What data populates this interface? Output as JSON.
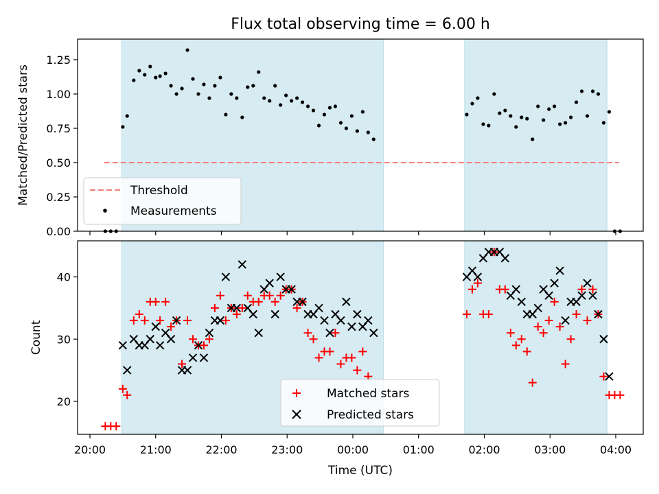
{
  "chart_data": [
    {
      "type": "scatter",
      "title": "Flux total observing time = 6.00 h",
      "xlabel": "",
      "ylabel": "Matched/Predicted stars",
      "ylim": [
        0,
        1.4
      ],
      "y_ticks": [
        "0.00",
        "0.25",
        "0.50",
        "0.75",
        "1.00",
        "1.25"
      ],
      "y_tick_values": [
        0,
        0.25,
        0.5,
        0.75,
        1.0,
        1.25
      ],
      "x_ticks": [
        "20:00",
        "21:00",
        "22:00",
        "23:00",
        "00:00",
        "01:00",
        "02:00",
        "03:00",
        "04:00"
      ],
      "shaded_intervals": [
        [
          "20:29",
          "00:28"
        ],
        [
          "01:42",
          "03:52"
        ]
      ],
      "threshold": {
        "name": "Threshold",
        "value": 0.5,
        "x_range": [
          "20:13",
          "04:03"
        ]
      },
      "legend_position": "lower-left",
      "series": [
        {
          "name": "Measurements",
          "marker": "dot",
          "color": "#000000",
          "points": [
            [
              "20:14",
              0.0
            ],
            [
              "20:19",
              0.0
            ],
            [
              "20:24",
              0.0
            ],
            [
              "20:30",
              0.76
            ],
            [
              "20:34",
              0.84
            ],
            [
              "20:40",
              1.1
            ],
            [
              "20:45",
              1.17
            ],
            [
              "20:50",
              1.14
            ],
            [
              "20:55",
              1.2
            ],
            [
              "21:00",
              1.12
            ],
            [
              "21:04",
              1.13
            ],
            [
              "21:09",
              1.15
            ],
            [
              "21:14",
              1.06
            ],
            [
              "21:19",
              1.0
            ],
            [
              "21:24",
              1.04
            ],
            [
              "21:29",
              1.32
            ],
            [
              "21:34",
              1.11
            ],
            [
              "21:39",
              1.0
            ],
            [
              "21:44",
              1.07
            ],
            [
              "21:49",
              0.97
            ],
            [
              "21:54",
              1.06
            ],
            [
              "21:59",
              1.12
            ],
            [
              "22:04",
              0.85
            ],
            [
              "22:09",
              1.0
            ],
            [
              "22:14",
              0.97
            ],
            [
              "22:19",
              0.83
            ],
            [
              "22:24",
              1.05
            ],
            [
              "22:29",
              1.06
            ],
            [
              "22:34",
              1.16
            ],
            [
              "22:39",
              0.97
            ],
            [
              "22:44",
              0.95
            ],
            [
              "22:49",
              1.06
            ],
            [
              "22:54",
              0.92
            ],
            [
              "22:59",
              0.99
            ],
            [
              "23:04",
              0.95
            ],
            [
              "23:09",
              0.97
            ],
            [
              "23:14",
              0.94
            ],
            [
              "23:19",
              0.91
            ],
            [
              "23:24",
              0.88
            ],
            [
              "23:29",
              0.77
            ],
            [
              "23:34",
              0.85
            ],
            [
              "23:39",
              0.9
            ],
            [
              "23:44",
              0.91
            ],
            [
              "23:49",
              0.79
            ],
            [
              "23:54",
              0.75
            ],
            [
              "23:59",
              0.84
            ],
            [
              "00:04",
              0.73
            ],
            [
              "00:09",
              0.87
            ],
            [
              "00:14",
              0.72
            ],
            [
              "00:19",
              0.67
            ],
            [
              "01:44",
              0.85
            ],
            [
              "01:49",
              0.93
            ],
            [
              "01:54",
              0.97
            ],
            [
              "01:59",
              0.78
            ],
            [
              "02:04",
              0.77
            ],
            [
              "02:09",
              1.0
            ],
            [
              "02:14",
              0.86
            ],
            [
              "02:19",
              0.88
            ],
            [
              "02:24",
              0.84
            ],
            [
              "02:29",
              0.76
            ],
            [
              "02:34",
              0.83
            ],
            [
              "02:39",
              0.82
            ],
            [
              "02:44",
              0.67
            ],
            [
              "02:49",
              0.91
            ],
            [
              "02:54",
              0.81
            ],
            [
              "02:59",
              0.89
            ],
            [
              "03:04",
              0.91
            ],
            [
              "03:09",
              0.78
            ],
            [
              "03:14",
              0.79
            ],
            [
              "03:19",
              0.83
            ],
            [
              "03:24",
              0.94
            ],
            [
              "03:29",
              1.02
            ],
            [
              "03:34",
              0.84
            ],
            [
              "03:39",
              1.02
            ],
            [
              "03:44",
              1.0
            ],
            [
              "03:49",
              0.79
            ],
            [
              "03:54",
              0.87
            ],
            [
              "03:59",
              0.0
            ],
            [
              "04:04",
              0.0
            ]
          ]
        }
      ]
    },
    {
      "type": "scatter",
      "title": "",
      "xlabel": "Time (UTC)",
      "ylabel": "Count",
      "ylim": [
        14.7,
        45.8
      ],
      "y_ticks": [
        "20",
        "30",
        "40"
      ],
      "y_tick_values": [
        20,
        30,
        40
      ],
      "x_ticks": [
        "20:00",
        "21:00",
        "22:00",
        "23:00",
        "00:00",
        "01:00",
        "02:00",
        "03:00",
        "04:00"
      ],
      "shaded_intervals": [
        [
          "20:29",
          "00:28"
        ],
        [
          "01:42",
          "03:52"
        ]
      ],
      "legend_position": "lower-center",
      "series": [
        {
          "name": "Matched stars",
          "marker": "plus",
          "color": "#ff0000",
          "points": [
            [
              "20:14",
              16
            ],
            [
              "20:19",
              16
            ],
            [
              "20:24",
              16
            ],
            [
              "20:30",
              22
            ],
            [
              "20:34",
              21
            ],
            [
              "20:40",
              33
            ],
            [
              "20:45",
              34
            ],
            [
              "20:50",
              33
            ],
            [
              "20:55",
              36
            ],
            [
              "21:00",
              36
            ],
            [
              "21:04",
              33
            ],
            [
              "21:09",
              36
            ],
            [
              "21:14",
              32
            ],
            [
              "21:19",
              33
            ],
            [
              "21:24",
              26
            ],
            [
              "21:29",
              33
            ],
            [
              "21:34",
              30
            ],
            [
              "21:39",
              29
            ],
            [
              "21:44",
              29
            ],
            [
              "21:49",
              30
            ],
            [
              "21:54",
              35
            ],
            [
              "21:59",
              37
            ],
            [
              "22:04",
              33
            ],
            [
              "22:09",
              35
            ],
            [
              "22:14",
              34
            ],
            [
              "22:19",
              35
            ],
            [
              "22:24",
              37
            ],
            [
              "22:29",
              36
            ],
            [
              "22:34",
              36
            ],
            [
              "22:39",
              37
            ],
            [
              "22:44",
              37
            ],
            [
              "22:49",
              36
            ],
            [
              "22:54",
              37
            ],
            [
              "22:59",
              38
            ],
            [
              "23:04",
              38
            ],
            [
              "23:09",
              35
            ],
            [
              "23:14",
              36
            ],
            [
              "23:19",
              31
            ],
            [
              "23:24",
              30
            ],
            [
              "23:29",
              27
            ],
            [
              "23:34",
              28
            ],
            [
              "23:39",
              28
            ],
            [
              "23:44",
              31
            ],
            [
              "23:49",
              26
            ],
            [
              "23:54",
              27
            ],
            [
              "23:59",
              27
            ],
            [
              "00:04",
              25
            ],
            [
              "00:09",
              28
            ],
            [
              "00:14",
              24
            ],
            [
              "01:44",
              34
            ],
            [
              "01:49",
              38
            ],
            [
              "01:54",
              39
            ],
            [
              "01:59",
              34
            ],
            [
              "02:04",
              34
            ],
            [
              "02:09",
              44
            ],
            [
              "02:14",
              38
            ],
            [
              "02:19",
              38
            ],
            [
              "02:24",
              31
            ],
            [
              "02:29",
              29
            ],
            [
              "02:34",
              30
            ],
            [
              "02:39",
              28
            ],
            [
              "02:44",
              23
            ],
            [
              "02:49",
              32
            ],
            [
              "02:54",
              31
            ],
            [
              "02:59",
              33
            ],
            [
              "03:04",
              36
            ],
            [
              "03:09",
              32
            ],
            [
              "03:14",
              26
            ],
            [
              "03:19",
              30
            ],
            [
              "03:24",
              34
            ],
            [
              "03:29",
              38
            ],
            [
              "03:34",
              33
            ],
            [
              "03:39",
              38
            ],
            [
              "03:44",
              34
            ],
            [
              "03:49",
              24
            ],
            [
              "03:54",
              21
            ],
            [
              "03:59",
              21
            ],
            [
              "04:04",
              21
            ]
          ]
        },
        {
          "name": "Predicted stars",
          "marker": "x",
          "color": "#000000",
          "points": [
            [
              "20:30",
              29
            ],
            [
              "20:34",
              25
            ],
            [
              "20:40",
              30
            ],
            [
              "20:45",
              29
            ],
            [
              "20:50",
              29
            ],
            [
              "20:55",
              30
            ],
            [
              "21:00",
              32
            ],
            [
              "21:04",
              29
            ],
            [
              "21:09",
              31
            ],
            [
              "21:14",
              30
            ],
            [
              "21:19",
              33
            ],
            [
              "21:24",
              25
            ],
            [
              "21:29",
              25
            ],
            [
              "21:34",
              27
            ],
            [
              "21:39",
              29
            ],
            [
              "21:44",
              27
            ],
            [
              "21:49",
              31
            ],
            [
              "21:54",
              33
            ],
            [
              "21:59",
              33
            ],
            [
              "22:04",
              40
            ],
            [
              "22:09",
              35
            ],
            [
              "22:14",
              35
            ],
            [
              "22:19",
              42
            ],
            [
              "22:24",
              35
            ],
            [
              "22:29",
              34
            ],
            [
              "22:34",
              31
            ],
            [
              "22:39",
              38
            ],
            [
              "22:44",
              39
            ],
            [
              "22:49",
              34
            ],
            [
              "22:54",
              40
            ],
            [
              "22:59",
              38
            ],
            [
              "23:04",
              38
            ],
            [
              "23:09",
              36
            ],
            [
              "23:14",
              36
            ],
            [
              "23:19",
              34
            ],
            [
              "23:24",
              34
            ],
            [
              "23:29",
              35
            ],
            [
              "23:34",
              33
            ],
            [
              "23:39",
              31
            ],
            [
              "23:44",
              34
            ],
            [
              "23:49",
              33
            ],
            [
              "23:54",
              36
            ],
            [
              "23:59",
              32
            ],
            [
              "00:04",
              34
            ],
            [
              "00:09",
              32
            ],
            [
              "00:14",
              33
            ],
            [
              "00:19",
              31
            ],
            [
              "01:44",
              40
            ],
            [
              "01:49",
              41
            ],
            [
              "01:54",
              40
            ],
            [
              "01:59",
              43
            ],
            [
              "02:04",
              44
            ],
            [
              "02:09",
              44
            ],
            [
              "02:14",
              44
            ],
            [
              "02:19",
              43
            ],
            [
              "02:24",
              37
            ],
            [
              "02:29",
              38
            ],
            [
              "02:34",
              36
            ],
            [
              "02:39",
              34
            ],
            [
              "02:44",
              34
            ],
            [
              "02:49",
              35
            ],
            [
              "02:54",
              38
            ],
            [
              "02:59",
              37
            ],
            [
              "03:04",
              39
            ],
            [
              "03:09",
              41
            ],
            [
              "03:14",
              33
            ],
            [
              "03:19",
              36
            ],
            [
              "03:24",
              36
            ],
            [
              "03:29",
              37
            ],
            [
              "03:34",
              39
            ],
            [
              "03:39",
              37
            ],
            [
              "03:44",
              34
            ],
            [
              "03:49",
              30
            ],
            [
              "03:54",
              24
            ]
          ]
        }
      ]
    }
  ]
}
